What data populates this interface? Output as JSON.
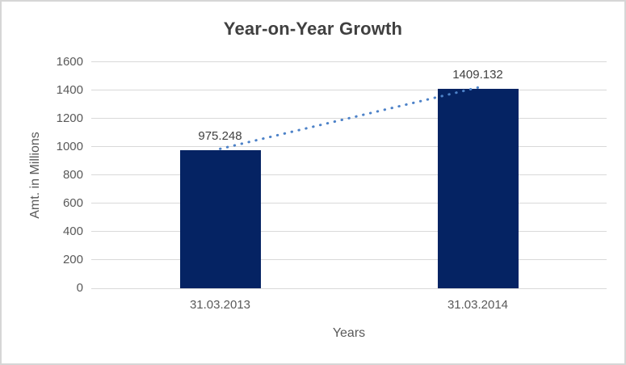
{
  "chart_data": {
    "type": "bar",
    "title": "Year-on-Year Growth",
    "categories": [
      "31.03.2013",
      "31.03.2014"
    ],
    "values": [
      975.248,
      1409.132
    ],
    "data_labels": [
      "975.248",
      "1409.132"
    ],
    "xlabel": "Years",
    "ylabel": "Amt. in Millions",
    "ylim": [
      0,
      1600
    ],
    "ytick_step": 200,
    "yticks": [
      0,
      200,
      400,
      600,
      800,
      1000,
      1200,
      1400,
      1600
    ],
    "grid": true,
    "legend": "none",
    "trendline": {
      "type": "linear",
      "style": "dotted",
      "color": "#4d82c8"
    },
    "colors": {
      "bar": "#052363",
      "gridline": "#d9d9d9",
      "title_text": "#404040",
      "axis_text": "#595959",
      "data_label_text": "#404040",
      "frame_border": "#d6d6d6",
      "background": "#ffffff"
    }
  }
}
